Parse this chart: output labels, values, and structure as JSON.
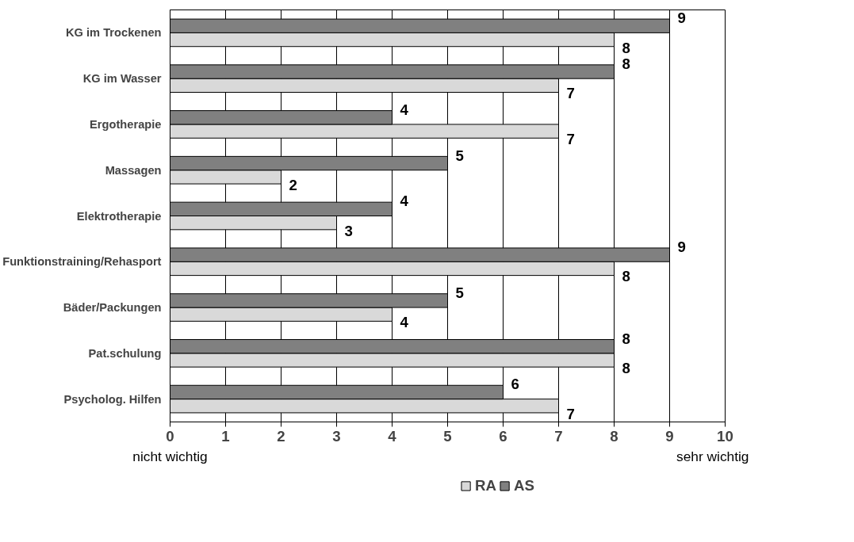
{
  "chart_data": {
    "type": "bar",
    "orientation": "horizontal",
    "categories": [
      "KG im Trockenen",
      "KG im Wasser",
      "Ergotherapie",
      "Massagen",
      "Elektrotherapie",
      "Funktionstraining/Rehasport",
      "Bäder/Packungen",
      "Pat.schulung",
      "Psycholog. Hilfen"
    ],
    "series": [
      {
        "name": "RA",
        "color": "#d9d9d9",
        "values": [
          8,
          7,
          7,
          2,
          3,
          8,
          4,
          8,
          7
        ]
      },
      {
        "name": "AS",
        "color": "#808080",
        "values": [
          9,
          8,
          4,
          5,
          4,
          9,
          5,
          8,
          6
        ]
      }
    ],
    "xlim": [
      0,
      10
    ],
    "xticks": [
      0,
      1,
      2,
      3,
      4,
      5,
      6,
      7,
      8,
      9,
      10
    ],
    "grid": "x",
    "legend": "bottom",
    "data_labels": true,
    "annotations": [
      "nicht wichtig",
      "sehr wichtig"
    ]
  }
}
